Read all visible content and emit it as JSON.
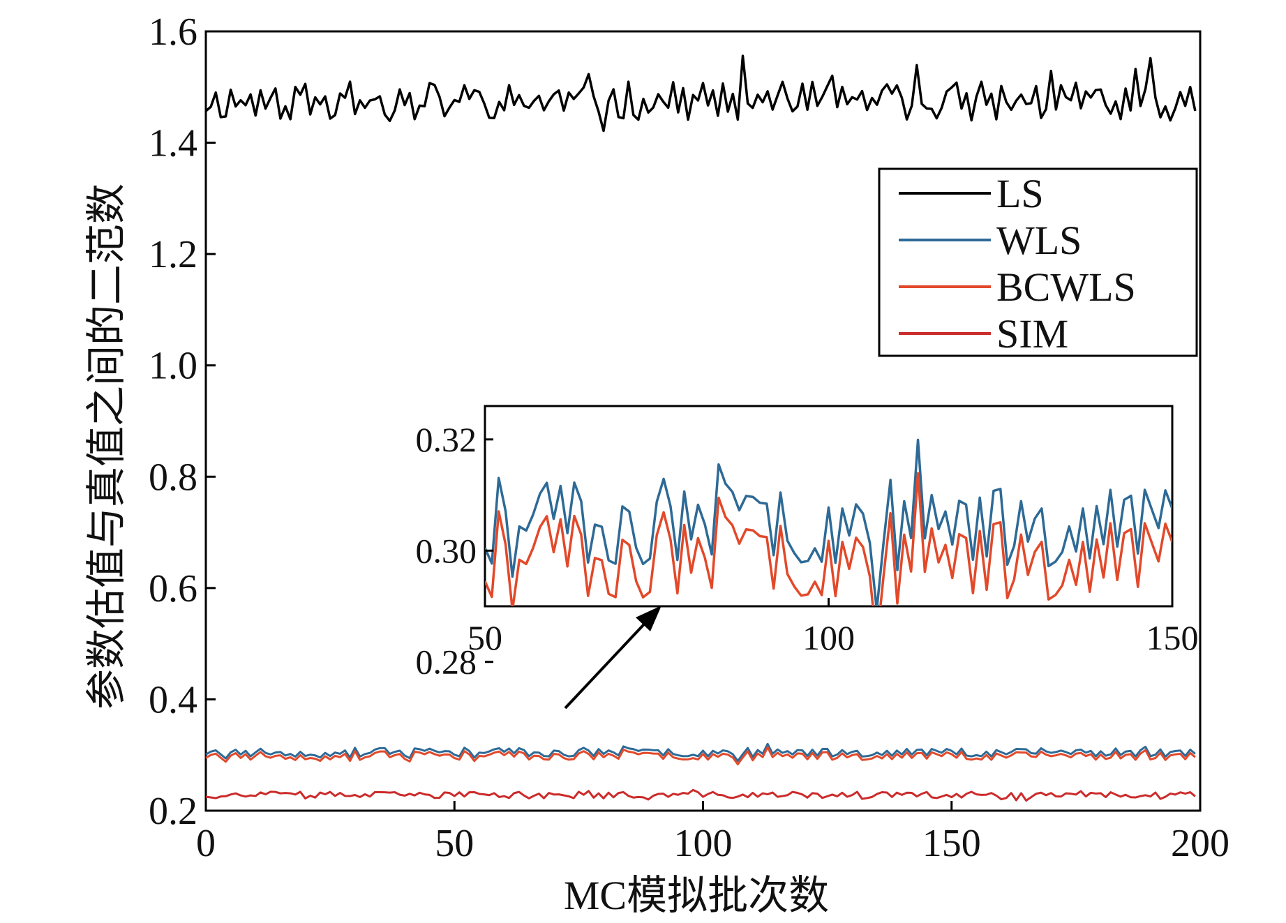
{
  "chart_data": {
    "type": "line",
    "main": {
      "xlabel": "MC模拟批次数",
      "ylabel": "参数估值与真值之间的二范数",
      "xlim": [
        0,
        200
      ],
      "ylim": [
        0.2,
        1.6
      ],
      "xticks": [
        0,
        50,
        100,
        150,
        200
      ],
      "xtick_labels": [
        "0",
        "50",
        "100",
        "150",
        "200"
      ],
      "yticks": [
        0.2,
        0.4,
        0.6,
        0.8,
        1.0,
        1.2,
        1.4,
        1.6
      ],
      "ytick_labels": [
        "0.2",
        "0.4",
        "0.6",
        "0.8",
        "1.0",
        "1.2",
        "1.4",
        "1.6"
      ],
      "legend_position": "top-right",
      "series": [
        {
          "name": "LS",
          "color": "#000000",
          "mean": 1.475,
          "noise": 0.035,
          "seed": 11,
          "n": 200
        },
        {
          "name": "WLS",
          "color": "#2e6a96",
          "mean": 0.305,
          "noise": 0.008,
          "seed": 23,
          "n": 200
        },
        {
          "name": "BCWLS",
          "color": "#e2492a",
          "mean": 0.302,
          "noise": 0.008,
          "seed": 23,
          "n": 200
        },
        {
          "name": "SIM",
          "color": "#cc2b2b",
          "mean": 0.228,
          "noise": 0.006,
          "seed": 37,
          "n": 200
        }
      ]
    },
    "inset": {
      "xlim": [
        50,
        150
      ],
      "ylim": [
        0.29,
        0.326
      ],
      "xticks": [
        50,
        100,
        150
      ],
      "xtick_labels": [
        "50",
        "100",
        "150"
      ],
      "yticks": [
        0.28,
        0.3,
        0.32
      ],
      "ytick_labels": [
        "0.28",
        "0.30",
        "0.32"
      ]
    }
  }
}
